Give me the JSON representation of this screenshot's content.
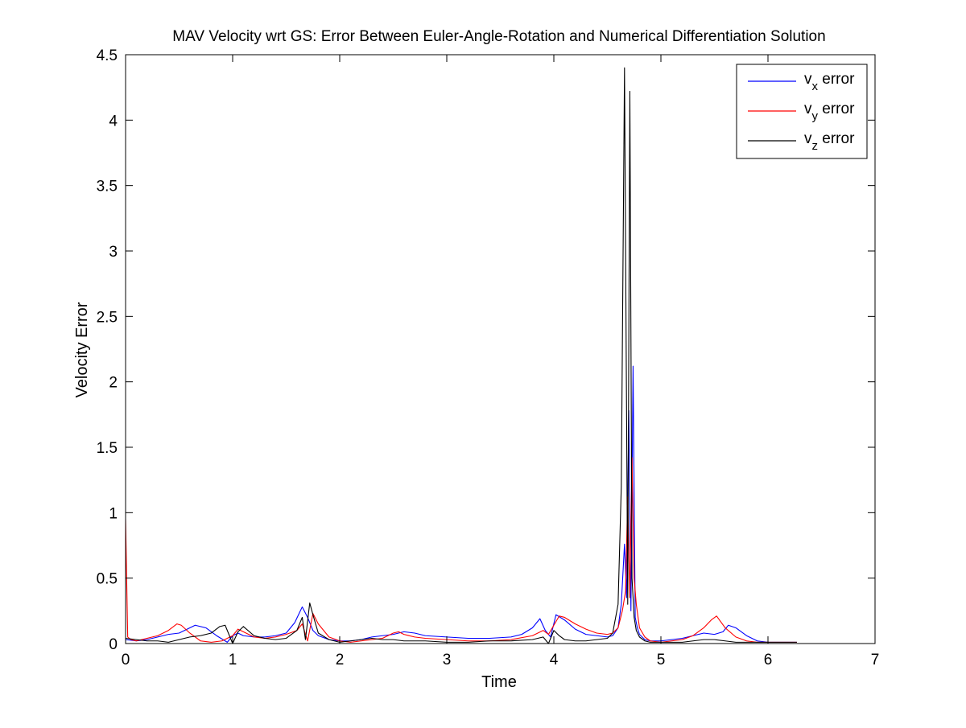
{
  "chart_data": {
    "type": "line",
    "title": "MAV Velocity wrt GS: Error Between Euler-Angle-Rotation and Numerical Differentiation Solution",
    "xlabel": "Time",
    "ylabel": "Velocity Error",
    "xlim": [
      0,
      7
    ],
    "ylim": [
      0,
      4.5
    ],
    "xticks": [
      0,
      1,
      2,
      3,
      4,
      5,
      6,
      7
    ],
    "xtick_labels": [
      "0",
      "1",
      "2",
      "3",
      "4",
      "5",
      "6",
      "7"
    ],
    "yticks": [
      0,
      0.5,
      1,
      1.5,
      2,
      2.5,
      3,
      3.5,
      4,
      4.5
    ],
    "ytick_labels": [
      "0",
      "0.5",
      "1",
      "1.5",
      "2",
      "2.5",
      "3",
      "3.5",
      "4",
      "4.5"
    ],
    "grid": false,
    "legend_position": "top-right",
    "series": [
      {
        "name_base": "v",
        "name_sub": "x",
        "name_suffix": " error",
        "color": "#0000ff",
        "x": [
          0,
          0.1,
          0.2,
          0.3,
          0.4,
          0.5,
          0.6,
          0.65,
          0.75,
          0.85,
          0.95,
          1.0,
          1.05,
          1.1,
          1.2,
          1.3,
          1.4,
          1.5,
          1.58,
          1.65,
          1.7,
          1.75,
          1.8,
          1.9,
          2.0,
          2.1,
          2.2,
          2.3,
          2.4,
          2.5,
          2.6,
          2.7,
          2.8,
          3.0,
          3.2,
          3.4,
          3.6,
          3.7,
          3.8,
          3.87,
          3.92,
          3.97,
          4.02,
          4.1,
          4.2,
          4.3,
          4.4,
          4.5,
          4.55,
          4.6,
          4.63,
          4.66,
          4.68,
          4.7,
          4.72,
          4.74,
          4.76,
          4.78,
          4.8,
          4.85,
          4.9,
          5.0,
          5.1,
          5.2,
          5.3,
          5.4,
          5.5,
          5.58,
          5.63,
          5.7,
          5.8,
          5.9,
          6.0,
          6.1,
          6.2,
          6.27
        ],
        "y": [
          0.03,
          0.02,
          0.03,
          0.05,
          0.07,
          0.08,
          0.12,
          0.14,
          0.12,
          0.06,
          0.01,
          0.06,
          0.08,
          0.06,
          0.05,
          0.05,
          0.06,
          0.08,
          0.16,
          0.28,
          0.2,
          0.1,
          0.06,
          0.03,
          0.02,
          0.02,
          0.03,
          0.05,
          0.06,
          0.07,
          0.09,
          0.08,
          0.06,
          0.05,
          0.04,
          0.04,
          0.05,
          0.07,
          0.12,
          0.19,
          0.1,
          0.05,
          0.22,
          0.18,
          0.11,
          0.07,
          0.06,
          0.05,
          0.06,
          0.12,
          0.3,
          0.76,
          0.35,
          1.78,
          0.25,
          2.12,
          0.2,
          0.12,
          0.07,
          0.03,
          0.02,
          0.02,
          0.03,
          0.04,
          0.06,
          0.08,
          0.07,
          0.09,
          0.14,
          0.12,
          0.06,
          0.02,
          0.01,
          0.01,
          0.01,
          0.01
        ]
      },
      {
        "name_base": "v",
        "name_sub": "y",
        "name_suffix": " error",
        "color": "#ff0000",
        "x": [
          0,
          0.02,
          0.05,
          0.1,
          0.2,
          0.3,
          0.4,
          0.48,
          0.52,
          0.6,
          0.7,
          0.8,
          0.9,
          1.0,
          1.05,
          1.1,
          1.2,
          1.3,
          1.4,
          1.5,
          1.6,
          1.65,
          1.7,
          1.75,
          1.8,
          1.9,
          2.0,
          2.1,
          2.2,
          2.3,
          2.4,
          2.5,
          2.55,
          2.6,
          2.7,
          2.8,
          3.0,
          3.2,
          3.4,
          3.6,
          3.8,
          3.9,
          3.95,
          4.0,
          4.05,
          4.1,
          4.2,
          4.3,
          4.4,
          4.5,
          4.55,
          4.6,
          4.64,
          4.67,
          4.69,
          4.71,
          4.73,
          4.75,
          4.77,
          4.8,
          4.85,
          4.9,
          5.0,
          5.1,
          5.2,
          5.3,
          5.4,
          5.47,
          5.52,
          5.6,
          5.7,
          5.8,
          5.9,
          6.0,
          6.1,
          6.2,
          6.27
        ],
        "y": [
          0.95,
          0.05,
          0.03,
          0.02,
          0.04,
          0.06,
          0.1,
          0.15,
          0.14,
          0.08,
          0.02,
          0.01,
          0.02,
          0.06,
          0.11,
          0.09,
          0.05,
          0.04,
          0.05,
          0.07,
          0.1,
          0.15,
          0.02,
          0.23,
          0.15,
          0.05,
          0.02,
          0.01,
          0.02,
          0.03,
          0.04,
          0.08,
          0.09,
          0.07,
          0.05,
          0.04,
          0.03,
          0.02,
          0.02,
          0.03,
          0.06,
          0.1,
          0.07,
          0.14,
          0.21,
          0.2,
          0.15,
          0.11,
          0.08,
          0.07,
          0.08,
          0.12,
          0.25,
          0.4,
          1.12,
          0.35,
          1.42,
          0.5,
          0.3,
          0.12,
          0.05,
          0.02,
          0.01,
          0.02,
          0.03,
          0.06,
          0.12,
          0.18,
          0.21,
          0.12,
          0.05,
          0.02,
          0.01,
          0.01,
          0.01,
          0.01,
          0.01
        ]
      },
      {
        "name_base": "v",
        "name_sub": "z",
        "name_suffix": " error",
        "color": "#000000",
        "x": [
          0,
          0.1,
          0.2,
          0.3,
          0.4,
          0.5,
          0.6,
          0.7,
          0.8,
          0.88,
          0.93,
          1.0,
          1.05,
          1.1,
          1.2,
          1.3,
          1.4,
          1.5,
          1.6,
          1.65,
          1.68,
          1.72,
          1.75,
          1.8,
          1.9,
          2.0,
          2.1,
          2.2,
          2.3,
          2.4,
          2.5,
          2.6,
          2.8,
          3.0,
          3.2,
          3.4,
          3.6,
          3.8,
          3.9,
          3.95,
          4.0,
          4.05,
          4.1,
          4.2,
          4.3,
          4.4,
          4.5,
          4.55,
          4.6,
          4.63,
          4.66,
          4.69,
          4.71,
          4.73,
          4.75,
          4.77,
          4.8,
          4.85,
          4.9,
          5.0,
          5.1,
          5.2,
          5.3,
          5.4,
          5.5,
          5.6,
          5.7,
          5.8,
          5.9,
          6.0,
          6.1,
          6.2,
          6.27
        ],
        "y": [
          0.04,
          0.03,
          0.02,
          0.02,
          0.01,
          0.03,
          0.05,
          0.06,
          0.08,
          0.13,
          0.14,
          0.0,
          0.09,
          0.13,
          0.06,
          0.04,
          0.03,
          0.04,
          0.1,
          0.2,
          0.03,
          0.31,
          0.22,
          0.08,
          0.03,
          0.01,
          0.02,
          0.03,
          0.04,
          0.03,
          0.03,
          0.02,
          0.02,
          0.01,
          0.01,
          0.02,
          0.02,
          0.03,
          0.05,
          0.0,
          0.1,
          0.06,
          0.03,
          0.02,
          0.02,
          0.03,
          0.04,
          0.08,
          0.3,
          1.2,
          4.4,
          0.3,
          4.22,
          0.5,
          0.2,
          0.1,
          0.05,
          0.02,
          0.01,
          0.01,
          0.01,
          0.01,
          0.02,
          0.03,
          0.03,
          0.02,
          0.01,
          0.01,
          0.01,
          0.01,
          0.01,
          0.01,
          0.01
        ]
      }
    ]
  }
}
